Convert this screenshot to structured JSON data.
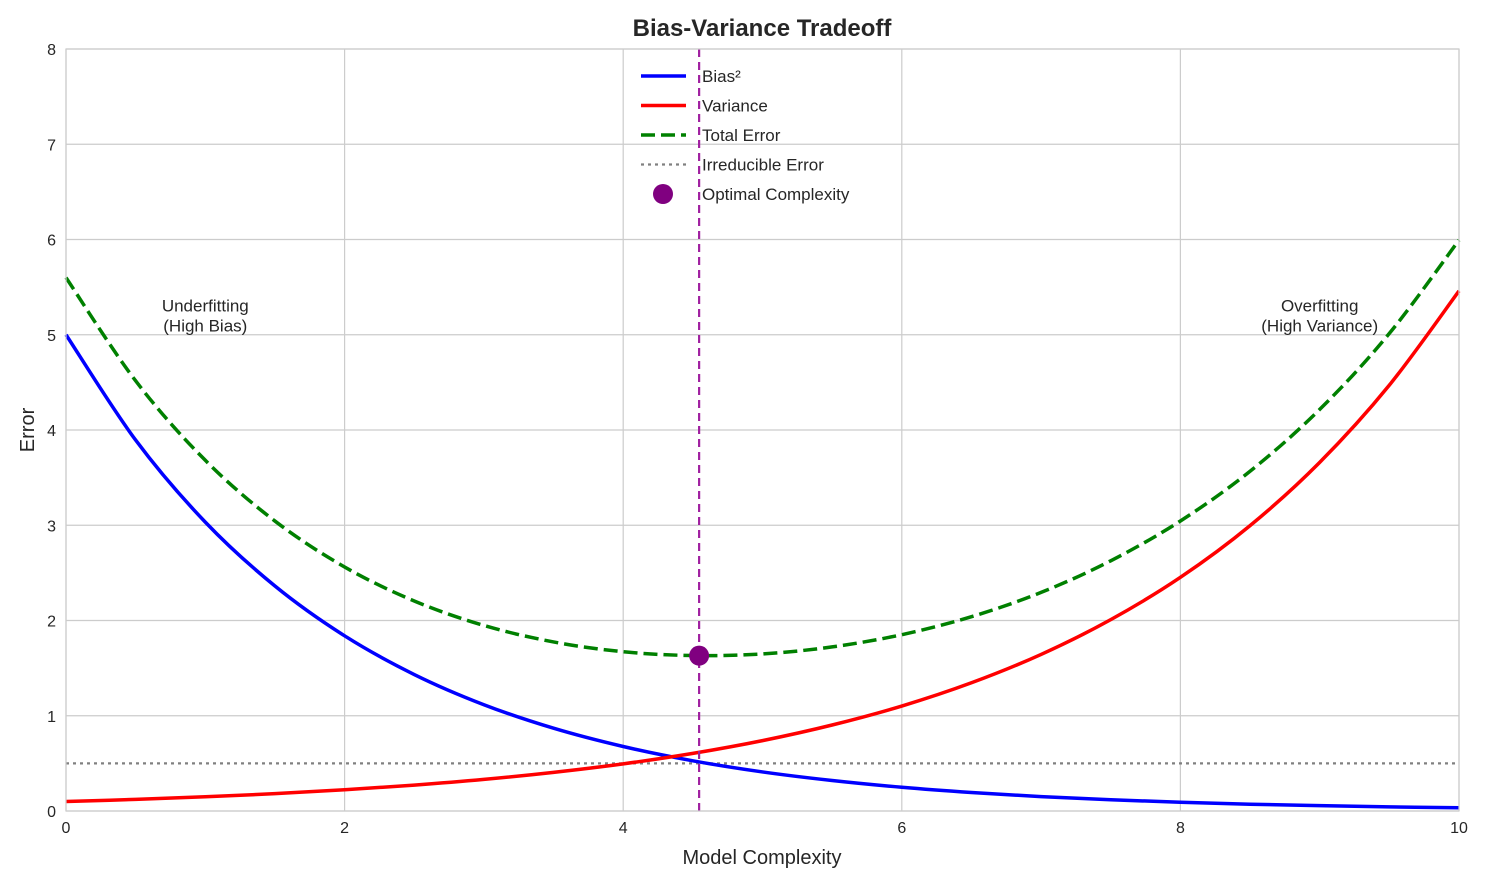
{
  "chart_data": {
    "type": "line",
    "title": "Bias-Variance Tradeoff",
    "xlabel": "Model Complexity",
    "ylabel": "Error",
    "xlim": [
      0,
      10
    ],
    "ylim": [
      0,
      8
    ],
    "xticks": [
      0,
      2,
      4,
      6,
      8,
      10
    ],
    "yticks": [
      0,
      1,
      2,
      3,
      4,
      5,
      6,
      7,
      8
    ],
    "grid": true,
    "legend_position": "top-center",
    "x": [
      0,
      0.5,
      1,
      1.5,
      2,
      2.5,
      3,
      3.5,
      4,
      4.5,
      5,
      5.5,
      6,
      6.5,
      7,
      7.5,
      8,
      8.5,
      9,
      9.5,
      10
    ],
    "series": [
      {
        "name": "Bias²",
        "color": "#0000ff",
        "style": "solid",
        "values": [
          5.0,
          3.894,
          3.033,
          2.362,
          1.839,
          1.433,
          1.116,
          0.869,
          0.677,
          0.527,
          0.41,
          0.32,
          0.249,
          0.194,
          0.151,
          0.118,
          0.092,
          0.071,
          0.056,
          0.043,
          0.034
        ]
      },
      {
        "name": "Variance",
        "color": "#ff0000",
        "style": "solid",
        "values": [
          0.1,
          0.122,
          0.149,
          0.182,
          0.223,
          0.272,
          0.332,
          0.406,
          0.495,
          0.605,
          0.739,
          0.903,
          1.102,
          1.346,
          1.644,
          2.009,
          2.453,
          2.996,
          3.66,
          4.471,
          5.46
        ]
      },
      {
        "name": "Total Error",
        "color": "#008000",
        "style": "dashed",
        "values": [
          5.6,
          4.516,
          3.682,
          3.044,
          2.562,
          2.205,
          1.948,
          1.775,
          1.672,
          1.632,
          1.649,
          1.723,
          1.851,
          2.04,
          2.295,
          2.627,
          3.045,
          3.567,
          4.216,
          5.014,
          5.994
        ]
      }
    ],
    "irreducible_error": {
      "name": "Irreducible Error",
      "value": 0.5,
      "color": "#808080",
      "style": "dotted"
    },
    "optimal": {
      "name": "Optimal Complexity",
      "x": 4.545,
      "y": 1.631,
      "color": "#800080"
    },
    "annotations": [
      {
        "text": [
          "Underfitting",
          "(High Bias)"
        ],
        "x": 1,
        "y": 5.2
      },
      {
        "text": [
          "Overfitting",
          "(High Variance)"
        ],
        "x": 9,
        "y": 5.2
      }
    ]
  }
}
